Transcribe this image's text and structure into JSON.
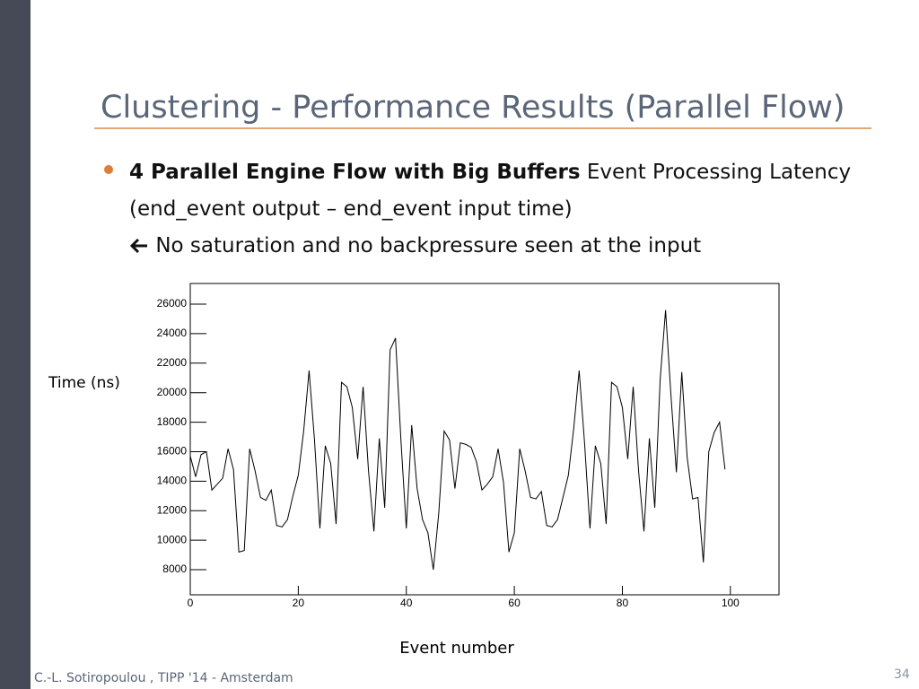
{
  "slide": {
    "title": "Clustering - Performance Results (Parallel Flow)",
    "bullet_bold": "4 Parallel Engine Flow with Big Buffers",
    "bullet_text": "Event Processing Latency (end_event output – end_event input time)",
    "bullet_note": "No saturation and no backpressure seen at the input",
    "footer": "C.-L. Sotiropoulou , TIPP '14 - Amsterdam",
    "page_number": "34"
  },
  "chart_data": {
    "type": "line",
    "x_label": "Event number",
    "y_label": "Time (ns)",
    "color": "#000000",
    "x": [
      0,
      1,
      2,
      3,
      4,
      5,
      6,
      7,
      8,
      9,
      10,
      11,
      12,
      13,
      14,
      15,
      16,
      17,
      18,
      19,
      20,
      21,
      22,
      23,
      24,
      25,
      26,
      27,
      28,
      29,
      30,
      31,
      32,
      33,
      34,
      35,
      36,
      37,
      38,
      39,
      40,
      41,
      42,
      43,
      44,
      45,
      46,
      47,
      48,
      49,
      50,
      51,
      52,
      53,
      54,
      55,
      56,
      57,
      58,
      59,
      60,
      61,
      62,
      63,
      64,
      65,
      66,
      67,
      68,
      69,
      70,
      71,
      72,
      73,
      74,
      75,
      76,
      77,
      78,
      79,
      80,
      81,
      82,
      83,
      84,
      85,
      86,
      87,
      88,
      89,
      90,
      91,
      92,
      93,
      94,
      95,
      96,
      97,
      98,
      99
    ],
    "values": [
      15700,
      14300,
      15800,
      16000,
      13400,
      13800,
      14200,
      16200,
      14800,
      9200,
      9300,
      16200,
      14700,
      12900,
      12700,
      13400,
      11000,
      10900,
      11400,
      13000,
      14400,
      17400,
      21500,
      16800,
      10800,
      16400,
      15200,
      11100,
      20700,
      20400,
      19000,
      15500,
      20400,
      14700,
      10600,
      16900,
      12200,
      22900,
      23700,
      16800,
      10800,
      17800,
      13500,
      11400,
      10500,
      8000,
      11800,
      17400,
      16800,
      13500,
      16600,
      16500,
      16300,
      15300,
      13400,
      13800,
      14300,
      16200,
      13900,
      9200,
      10500,
      16200,
      14700,
      12900,
      12800,
      13300,
      11000,
      10900,
      11400,
      12900,
      14400,
      17600,
      21500,
      16600,
      10800,
      16400,
      15200,
      11100,
      20700,
      20400,
      19000,
      15500,
      20400,
      14700,
      10600,
      16900,
      12200,
      20900,
      25600,
      19800,
      14600,
      21400,
      15600,
      12800,
      12900,
      8500,
      16000,
      17300,
      18000,
      14800
    ],
    "xlim": [
      0,
      109
    ],
    "ylim": [
      6300,
      27400
    ],
    "xticks": [
      0,
      20,
      40,
      60,
      80,
      100
    ],
    "yticks": [
      8000,
      10000,
      12000,
      14000,
      16000,
      18000,
      20000,
      22000,
      24000,
      26000
    ]
  }
}
